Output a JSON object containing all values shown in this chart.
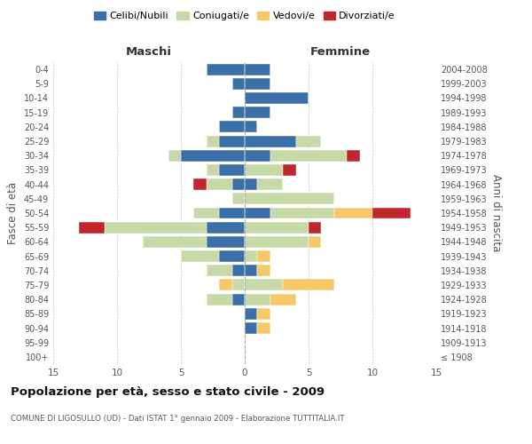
{
  "age_groups": [
    "100+",
    "95-99",
    "90-94",
    "85-89",
    "80-84",
    "75-79",
    "70-74",
    "65-69",
    "60-64",
    "55-59",
    "50-54",
    "45-49",
    "40-44",
    "35-39",
    "30-34",
    "25-29",
    "20-24",
    "15-19",
    "10-14",
    "5-9",
    "0-4"
  ],
  "birth_years": [
    "≤ 1908",
    "1909-1913",
    "1914-1918",
    "1919-1923",
    "1924-1928",
    "1929-1933",
    "1934-1938",
    "1939-1943",
    "1944-1948",
    "1949-1953",
    "1954-1958",
    "1959-1963",
    "1964-1968",
    "1969-1973",
    "1974-1978",
    "1979-1983",
    "1984-1988",
    "1989-1993",
    "1994-1998",
    "1999-2003",
    "2004-2008"
  ],
  "colors": {
    "celibe": "#3a6fa8",
    "coniugato": "#c8d9a8",
    "vedovo": "#f5c96a",
    "divorziato": "#c0272d"
  },
  "maschi": {
    "celibe": [
      0,
      0,
      0,
      0,
      1,
      0,
      1,
      2,
      3,
      3,
      2,
      0,
      1,
      2,
      5,
      2,
      2,
      1,
      0,
      1,
      3
    ],
    "coniugato": [
      0,
      0,
      0,
      0,
      2,
      1,
      2,
      3,
      5,
      8,
      2,
      1,
      2,
      1,
      1,
      1,
      0,
      0,
      0,
      0,
      0
    ],
    "vedovo": [
      0,
      0,
      0,
      0,
      0,
      1,
      0,
      0,
      0,
      0,
      0,
      0,
      0,
      0,
      0,
      0,
      0,
      0,
      0,
      0,
      0
    ],
    "divorziato": [
      0,
      0,
      0,
      0,
      0,
      0,
      0,
      0,
      0,
      2,
      0,
      0,
      1,
      0,
      0,
      0,
      0,
      0,
      0,
      0,
      0
    ]
  },
  "femmine": {
    "nubile": [
      0,
      0,
      1,
      1,
      0,
      0,
      1,
      0,
      0,
      0,
      2,
      0,
      1,
      0,
      2,
      4,
      1,
      2,
      5,
      2,
      2
    ],
    "coniugata": [
      0,
      0,
      0,
      0,
      2,
      3,
      0,
      1,
      5,
      5,
      5,
      7,
      2,
      3,
      6,
      2,
      0,
      0,
      0,
      0,
      0
    ],
    "vedova": [
      0,
      0,
      1,
      1,
      2,
      4,
      1,
      1,
      1,
      0,
      3,
      0,
      0,
      0,
      0,
      0,
      0,
      0,
      0,
      0,
      0
    ],
    "divorziata": [
      0,
      0,
      0,
      0,
      0,
      0,
      0,
      0,
      0,
      1,
      3,
      0,
      0,
      1,
      1,
      0,
      0,
      0,
      0,
      0,
      0
    ]
  },
  "title": "Popolazione per età, sesso e stato civile - 2009",
  "subtitle": "COMUNE DI LIGOSULLO (UD) - Dati ISTAT 1° gennaio 2009 - Elaborazione TUTTITALIA.IT",
  "xlabel_left": "Maschi",
  "xlabel_right": "Femmine",
  "ylabel_left": "Fasce di età",
  "ylabel_right": "Anni di nascita",
  "legend_labels": [
    "Celibi/Nubili",
    "Coniugati/e",
    "Vedovi/e",
    "Divorziati/e"
  ],
  "xlim": 15,
  "background_color": "#ffffff"
}
